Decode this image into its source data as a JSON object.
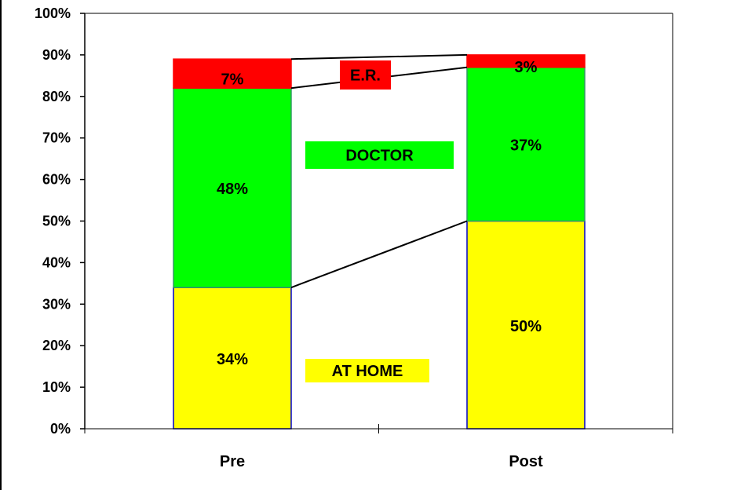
{
  "chart_data": {
    "type": "bar",
    "stacked": true,
    "categories": [
      "Pre",
      "Post"
    ],
    "series": [
      {
        "name": "AT HOME",
        "values": [
          34,
          50
        ],
        "labels": [
          "34%",
          "50%"
        ],
        "color": "#ffff00",
        "label_box_color": "#ffff00"
      },
      {
        "name": "DOCTOR",
        "values": [
          48,
          37
        ],
        "labels": [
          "48%",
          "37%"
        ],
        "color": "#00ff00",
        "label_box_color": "#00ff00"
      },
      {
        "name": "E.R.",
        "values": [
          7,
          3
        ],
        "labels": [
          "7%",
          "3%"
        ],
        "color": "#ff0000",
        "label_box_color": "#ff0000"
      }
    ],
    "yaxis": {
      "ticks": [
        "0%",
        "10%",
        "20%",
        "30%",
        "40%",
        "50%",
        "60%",
        "70%",
        "80%",
        "90%",
        "100%"
      ],
      "ylim": [
        0,
        100
      ]
    },
    "grid": false,
    "legend": "inline-between-bars",
    "title": ""
  }
}
